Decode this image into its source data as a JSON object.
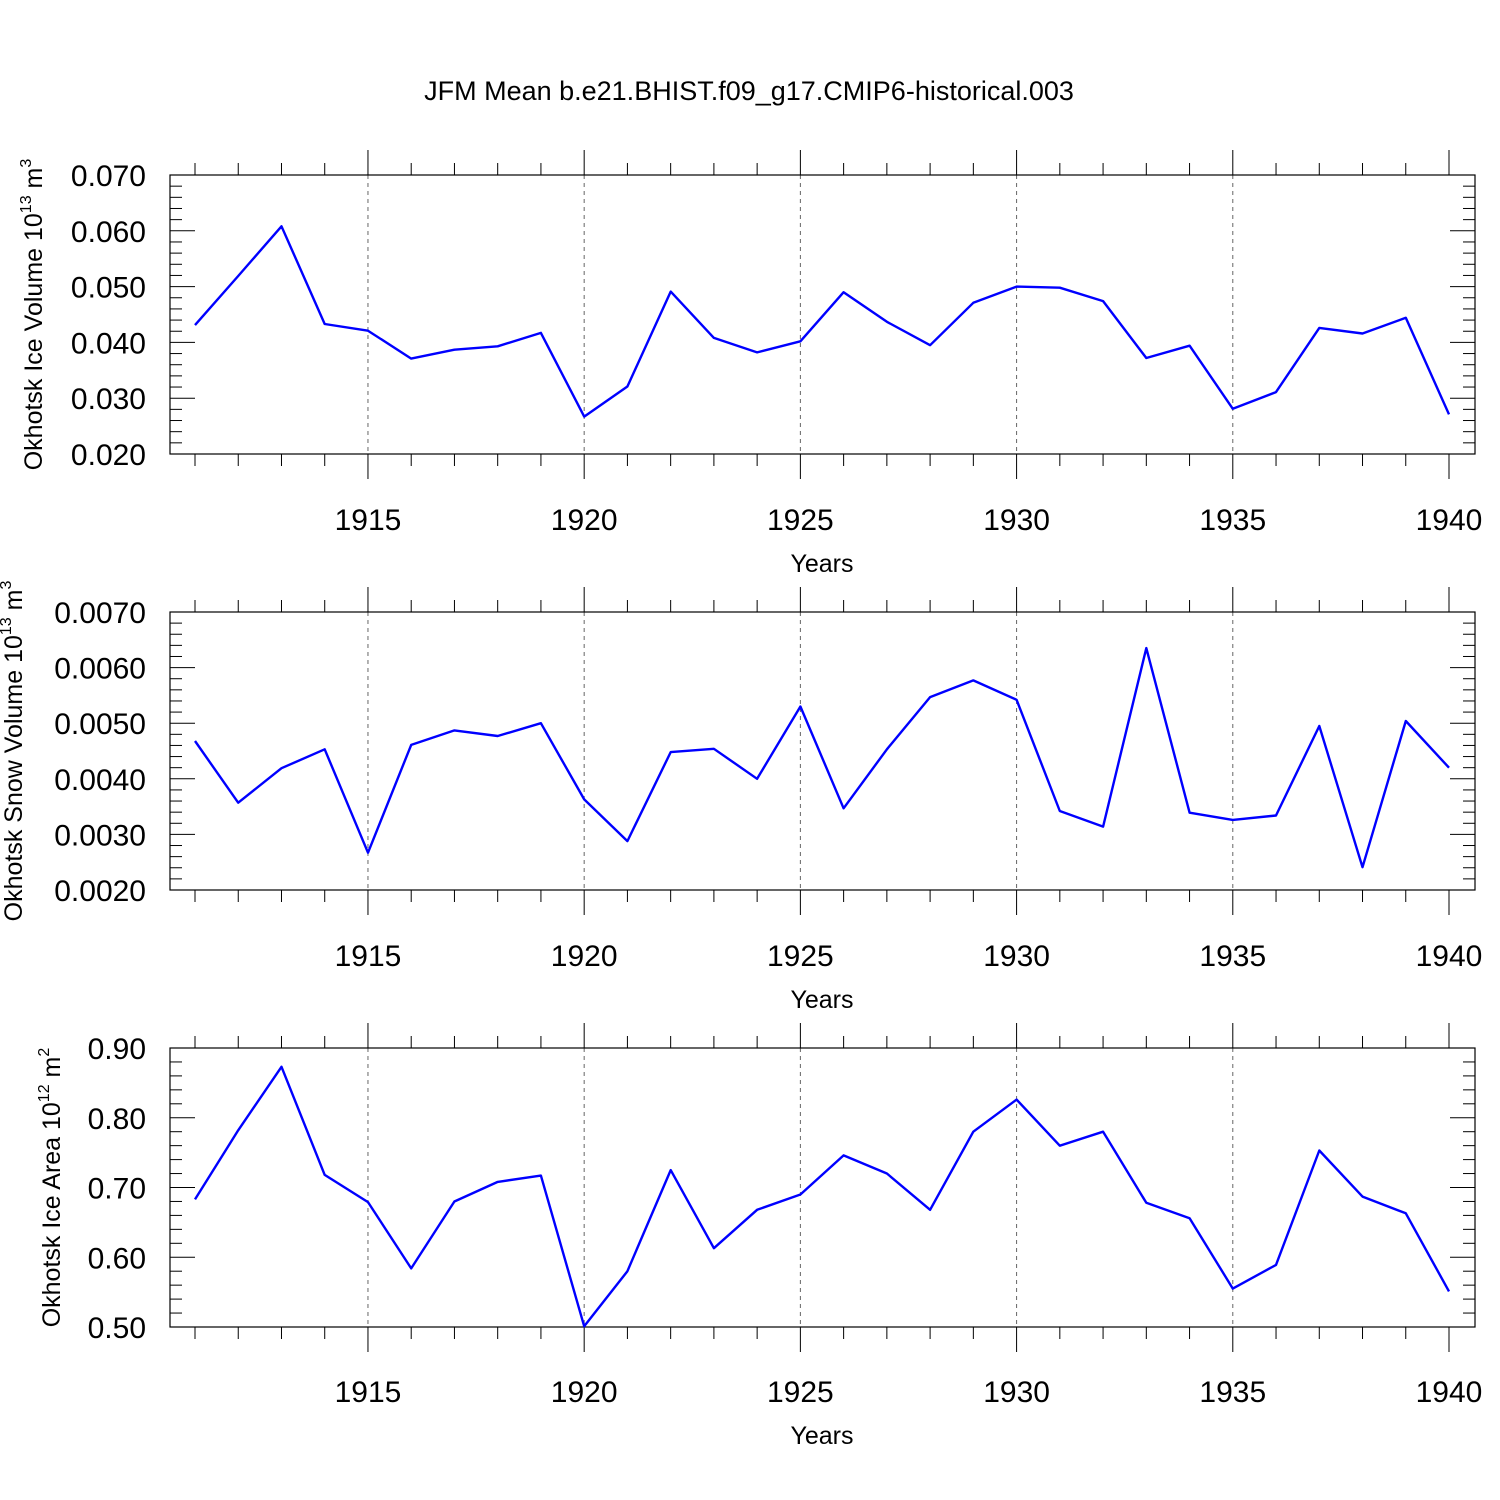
{
  "title": "JFM Mean b.e21.BHIST.f09_g17.CMIP6-historical.003",
  "colors": {
    "line": "#0000ff",
    "axes": "#000000",
    "background": "#ffffff"
  },
  "chart_data": [
    {
      "type": "line",
      "ylabel": "Okhotsk Ice Volume 10",
      "ylabel_exp": "13",
      "ylabel_unit": "m",
      "ylabel_unit_exp": "3",
      "xlabel": "Years",
      "xlim": [
        1911,
        1940
      ],
      "ylim": [
        0.02,
        0.07
      ],
      "yticks": [
        "0.020",
        "0.030",
        "0.040",
        "0.050",
        "0.060",
        "0.070"
      ],
      "ytick_values": [
        0.02,
        0.03,
        0.04,
        0.05,
        0.06,
        0.07
      ],
      "xticks": [
        "1915",
        "1920",
        "1925",
        "1930",
        "1935",
        "1940"
      ],
      "xtick_values": [
        1915,
        1920,
        1925,
        1930,
        1935,
        1940
      ],
      "grid": "dashed vertical at major x ticks",
      "x": [
        1911,
        1912,
        1913,
        1914,
        1915,
        1916,
        1917,
        1918,
        1919,
        1920,
        1921,
        1922,
        1923,
        1924,
        1925,
        1926,
        1927,
        1928,
        1929,
        1930,
        1931,
        1932,
        1933,
        1934,
        1935,
        1936,
        1937,
        1938,
        1939,
        1940
      ],
      "y": [
        0.0431,
        0.0519,
        0.0608,
        0.0433,
        0.0421,
        0.0371,
        0.0387,
        0.0393,
        0.0417,
        0.0267,
        0.0321,
        0.0491,
        0.0408,
        0.0382,
        0.0402,
        0.049,
        0.0437,
        0.0395,
        0.0471,
        0.05,
        0.0498,
        0.0474,
        0.0372,
        0.0394,
        0.0281,
        0.0311,
        0.0426,
        0.0416,
        0.0444,
        0.0271
      ]
    },
    {
      "type": "line",
      "ylabel": "Okhotsk Snow Volume 10",
      "ylabel_exp": "13",
      "ylabel_unit": "m",
      "ylabel_unit_exp": "3",
      "xlabel": "Years",
      "xlim": [
        1911,
        1940
      ],
      "ylim": [
        0.002,
        0.007
      ],
      "yticks": [
        "0.0020",
        "0.0030",
        "0.0040",
        "0.0050",
        "0.0060",
        "0.0070"
      ],
      "ytick_values": [
        0.002,
        0.003,
        0.004,
        0.005,
        0.006,
        0.007
      ],
      "xticks": [
        "1915",
        "1920",
        "1925",
        "1930",
        "1935",
        "1940"
      ],
      "xtick_values": [
        1915,
        1920,
        1925,
        1930,
        1935,
        1940
      ],
      "grid": "dashed vertical at major x ticks",
      "x": [
        1911,
        1912,
        1913,
        1914,
        1915,
        1916,
        1917,
        1918,
        1919,
        1920,
        1921,
        1922,
        1923,
        1924,
        1925,
        1926,
        1927,
        1928,
        1929,
        1930,
        1931,
        1932,
        1933,
        1934,
        1935,
        1936,
        1937,
        1938,
        1939,
        1940
      ],
      "y": [
        0.00468,
        0.00357,
        0.00419,
        0.00453,
        0.00267,
        0.00461,
        0.00487,
        0.00477,
        0.005,
        0.00363,
        0.00288,
        0.00448,
        0.00454,
        0.004,
        0.0053,
        0.00347,
        0.00453,
        0.00547,
        0.00577,
        0.00542,
        0.00342,
        0.00314,
        0.00635,
        0.00339,
        0.00326,
        0.00334,
        0.00495,
        0.00241,
        0.00504,
        0.0042
      ]
    },
    {
      "type": "line",
      "ylabel": "Okhotsk Ice Area 10",
      "ylabel_exp": "12",
      "ylabel_unit": "m",
      "ylabel_unit_exp": "2",
      "xlabel": "Years",
      "xlim": [
        1911,
        1940
      ],
      "ylim": [
        0.5,
        0.9
      ],
      "yticks": [
        "0.50",
        "0.60",
        "0.70",
        "0.80",
        "0.90"
      ],
      "ytick_values": [
        0.5,
        0.6,
        0.7,
        0.8,
        0.9
      ],
      "xticks": [
        "1915",
        "1920",
        "1925",
        "1930",
        "1935",
        "1940"
      ],
      "xtick_values": [
        1915,
        1920,
        1925,
        1930,
        1935,
        1940
      ],
      "grid": "dashed vertical at major x ticks",
      "x": [
        1911,
        1912,
        1913,
        1914,
        1915,
        1916,
        1917,
        1918,
        1919,
        1920,
        1921,
        1922,
        1923,
        1924,
        1925,
        1926,
        1927,
        1928,
        1929,
        1930,
        1931,
        1932,
        1933,
        1934,
        1935,
        1936,
        1937,
        1938,
        1939,
        1940
      ],
      "y": [
        0.683,
        0.782,
        0.873,
        0.718,
        0.679,
        0.584,
        0.68,
        0.708,
        0.717,
        0.501,
        0.58,
        0.725,
        0.613,
        0.668,
        0.69,
        0.746,
        0.72,
        0.668,
        0.78,
        0.826,
        0.76,
        0.78,
        0.678,
        0.656,
        0.555,
        0.589,
        0.753,
        0.687,
        0.663,
        0.551
      ]
    }
  ]
}
